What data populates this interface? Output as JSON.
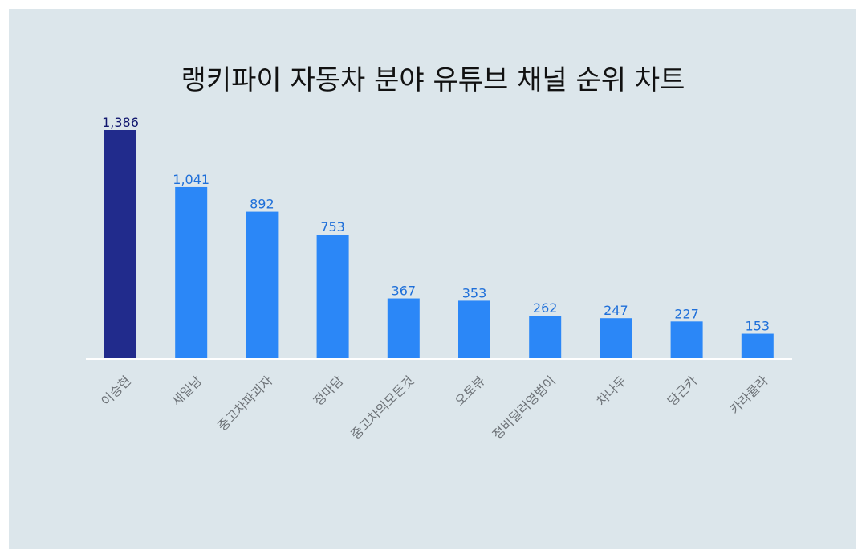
{
  "chart_data": {
    "type": "bar",
    "title": "랭키파이 자동차 분야 유튜브 채널 순위 차트",
    "categories": [
      "이승현",
      "세일남",
      "중고차파괴자",
      "정마담",
      "중고차의모든것",
      "오토뷰",
      "정비딜러영범이",
      "차나두",
      "당근카",
      "카라큘라"
    ],
    "values": [
      1386,
      1041,
      892,
      753,
      367,
      353,
      262,
      247,
      227,
      153
    ],
    "value_labels": [
      "1,386",
      "1,041",
      "892",
      "753",
      "367",
      "353",
      "262",
      "247",
      "227",
      "153"
    ],
    "ylim": [
      0,
      1386
    ],
    "grid": false,
    "legend": "none",
    "colors": {
      "highlight_bar": "#212b8c",
      "bar": "#2b87f7",
      "highlight_label": "#10166e",
      "label": "#1e6fd9",
      "category_label": "#6e7378",
      "baseline": "#ffffff",
      "background": "#dce6eb"
    }
  }
}
